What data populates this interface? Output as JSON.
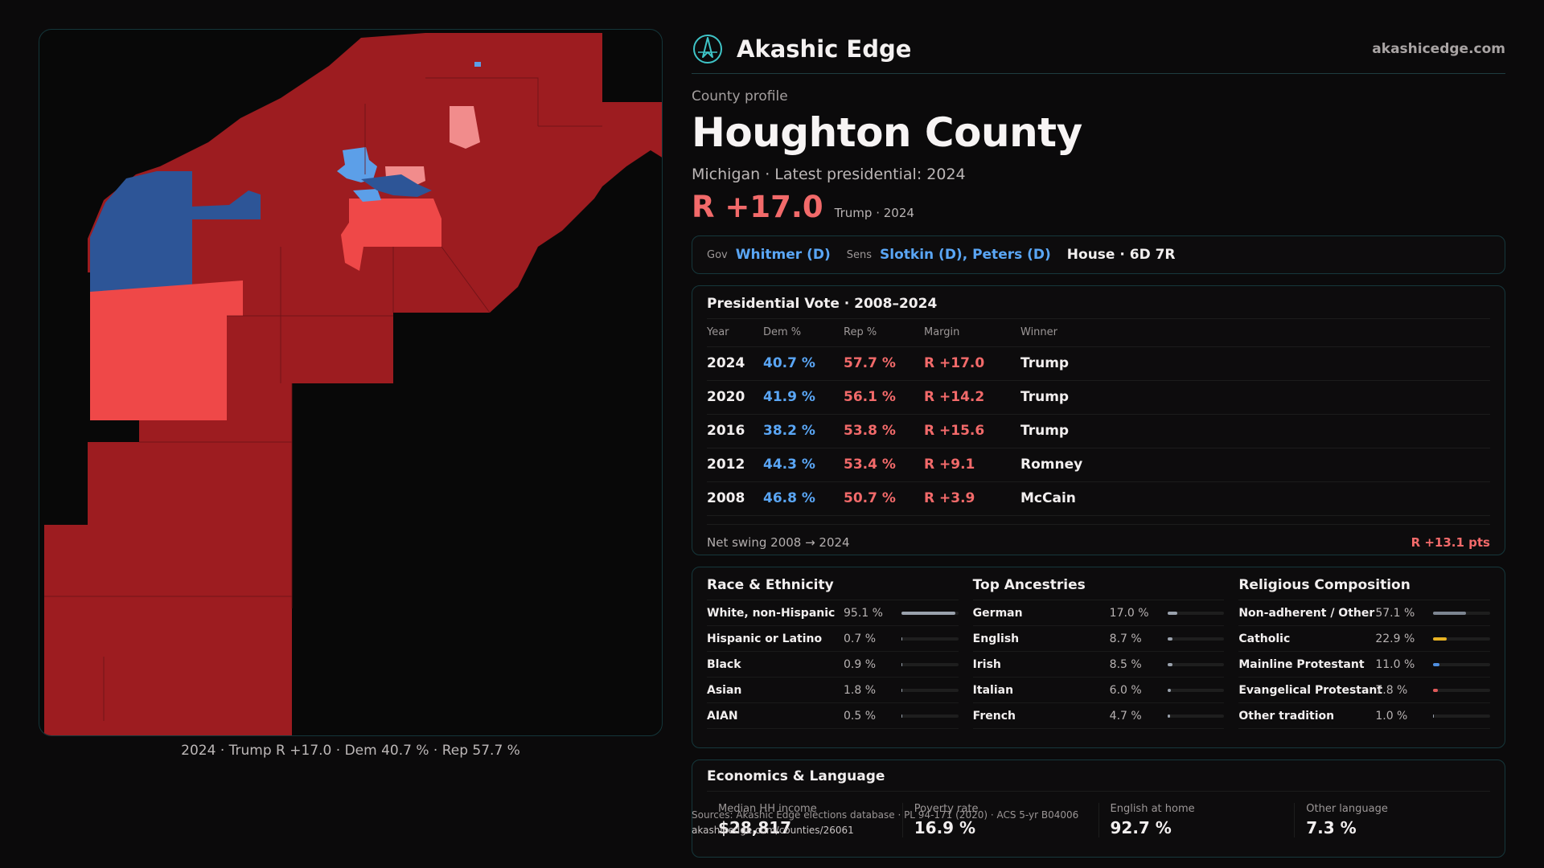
{
  "map": {
    "caption": "2024 · Trump R +17.0 · Dem 40.7 % · Rep 57.7 %",
    "colors": {
      "safe_r": "#9d1c20",
      "lean_r": "#ef4848",
      "tilt_r": "#f18c8c",
      "safe_d": "#2d5597",
      "lean_d": "#5c9fe8",
      "water": "#080808"
    }
  },
  "brand": {
    "name": "Akashic Edge",
    "url": "akashicedge.com",
    "logo_icon": "compass-logo-icon"
  },
  "profile": {
    "eyebrow": "County profile",
    "title": "Houghton County",
    "subtitle": "Michigan · Latest presidential: 2024",
    "margin": "R +17.0",
    "margin_note": "Trump · 2024"
  },
  "officials": {
    "gov_label": "Gov",
    "gov": "Whitmer (D)",
    "sens_label": "Sens",
    "sens": "Slotkin (D), Peters (D)",
    "house": "House · 6D 7R"
  },
  "presidential": {
    "title": "Presidential Vote · 2008–2024",
    "headers": [
      "Year",
      "Dem %",
      "Rep %",
      "Margin",
      "Winner"
    ],
    "rows": [
      {
        "year": "2024",
        "dem": "40.7 %",
        "rep": "57.7 %",
        "margin": "R +17.0",
        "winner": "Trump"
      },
      {
        "year": "2020",
        "dem": "41.9 %",
        "rep": "56.1 %",
        "margin": "R +14.2",
        "winner": "Trump"
      },
      {
        "year": "2016",
        "dem": "38.2 %",
        "rep": "53.8 %",
        "margin": "R +15.6",
        "winner": "Trump"
      },
      {
        "year": "2012",
        "dem": "44.3 %",
        "rep": "53.4 %",
        "margin": "R +9.1",
        "winner": "Romney"
      },
      {
        "year": "2008",
        "dem": "46.8 %",
        "rep": "50.7 %",
        "margin": "R +3.9",
        "winner": "McCain"
      }
    ],
    "swing_label": "Net swing 2008 → 2024",
    "swing_value": "R +13.1 pts"
  },
  "demographics": [
    {
      "title": "Race & Ethnicity",
      "items": [
        {
          "label": "White, non-Hispanic",
          "value": "95.1 %",
          "pct": 95.1,
          "color": "#9aa2ad"
        },
        {
          "label": "Hispanic or Latino",
          "value": "0.7 %",
          "pct": 0.7,
          "color": "#9aa2ad"
        },
        {
          "label": "Black",
          "value": "0.9 %",
          "pct": 0.9,
          "color": "#9aa2ad"
        },
        {
          "label": "Asian",
          "value": "1.8 %",
          "pct": 1.8,
          "color": "#9aa2ad"
        },
        {
          "label": "AIAN",
          "value": "0.5 %",
          "pct": 0.5,
          "color": "#9aa2ad"
        }
      ]
    },
    {
      "title": "Top Ancestries",
      "items": [
        {
          "label": "German",
          "value": "17.0 %",
          "pct": 17.0,
          "color": "#9aa2ad"
        },
        {
          "label": "English",
          "value": "8.7 %",
          "pct": 8.7,
          "color": "#9aa2ad"
        },
        {
          "label": "Irish",
          "value": "8.5 %",
          "pct": 8.5,
          "color": "#9aa2ad"
        },
        {
          "label": "Italian",
          "value": "6.0 %",
          "pct": 6.0,
          "color": "#9aa2ad"
        },
        {
          "label": "French",
          "value": "4.7 %",
          "pct": 4.7,
          "color": "#9aa2ad"
        }
      ]
    },
    {
      "title": "Religious Composition",
      "items": [
        {
          "label": "Non-adherent / Other",
          "value": "57.1 %",
          "pct": 57.1,
          "color": "#7d8591"
        },
        {
          "label": "Catholic",
          "value": "22.9 %",
          "pct": 22.9,
          "color": "#e8b323"
        },
        {
          "label": "Mainline Protestant",
          "value": "11.0 %",
          "pct": 11.0,
          "color": "#4f8fe0"
        },
        {
          "label": "Evangelical Protestant",
          "value": "7.8 %",
          "pct": 7.8,
          "color": "#e05a5a"
        },
        {
          "label": "Other tradition",
          "value": "1.0 %",
          "pct": 1.0,
          "color": "#9aa2ad"
        }
      ]
    }
  ],
  "economics": {
    "title": "Economics & Language",
    "items": [
      {
        "label": "Median HH income",
        "value": "$28,817"
      },
      {
        "label": "Poverty rate",
        "value": "16.9 %"
      },
      {
        "label": "English at home",
        "value": "92.7 %"
      },
      {
        "label": "Other language",
        "value": "7.3 %"
      }
    ]
  },
  "sources": {
    "text": "Sources: Akashic Edge elections database · PL 94-171 (2020) · ACS 5-yr B04006",
    "url": "akashicedge.com/counties/26061"
  }
}
